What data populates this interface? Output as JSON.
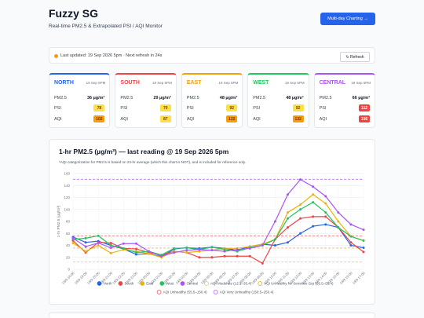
{
  "header": {
    "title": "Fuzzy SG",
    "subtitle": "Real-time PM2.5 & Extrapolated PSI / AQI Monitor",
    "button": "Multi-day Charting →"
  },
  "status": {
    "text": "Last updated: 19 Sep 2026 5pm · Next refresh in 24s",
    "button": "↻ Refresh"
  },
  "regions": [
    {
      "name": "NORTH",
      "time": "19 Sep 5PM",
      "color": "#2563eb",
      "pm25_label": "PM2.5",
      "pm25": "36 µg/m³",
      "psi_label": "PSI",
      "psi": {
        "value": 78,
        "color": "#fde047",
        "text_color": "#713f12"
      },
      "aqi_label": "AQI",
      "aqi": {
        "value": 102,
        "color": "#f59e0b",
        "text_color": "#7c2d12"
      }
    },
    {
      "name": "SOUTH",
      "time": "19 Sep 5PM",
      "color": "#ef4444",
      "pm25_label": "PM2.5",
      "pm25": "29 µg/m³",
      "psi_label": "PSI",
      "psi": {
        "value": 70,
        "color": "#fde047",
        "text_color": "#713f12"
      },
      "aqi_label": "AQI",
      "aqi": {
        "value": 87,
        "color": "#fde047",
        "text_color": "#713f12"
      }
    },
    {
      "name": "EAST",
      "time": "19 Sep 5PM",
      "color": "#f59e0b",
      "pm25_label": "PM2.5",
      "pm25": "48 µg/m³",
      "psi_label": "PSI",
      "psi": {
        "value": 92,
        "color": "#fde047",
        "text_color": "#713f12"
      },
      "aqi_label": "AQI",
      "aqi": {
        "value": 132,
        "color": "#f59e0b",
        "text_color": "#7c2d12"
      }
    },
    {
      "name": "WEST",
      "time": "19 Sep 5PM",
      "color": "#22c55e",
      "pm25_label": "PM2.5",
      "pm25": "48 µg/m³",
      "psi_label": "PSI",
      "psi": {
        "value": 92,
        "color": "#fde047",
        "text_color": "#713f12"
      },
      "aqi_label": "AQI",
      "aqi": {
        "value": 132,
        "color": "#f59e0b",
        "text_color": "#7c2d12"
      }
    },
    {
      "name": "CENTRAL",
      "time": "19 Sep 5PM",
      "color": "#a855f7",
      "pm25_label": "PM2.5",
      "pm25": "66 µg/m³",
      "psi_label": "PSI",
      "psi": {
        "value": 112,
        "color": "#ef4444",
        "text_color": "#ffffff"
      },
      "aqi_label": "AQI",
      "aqi": {
        "value": 156,
        "color": "#ef4444",
        "text_color": "#ffffff"
      }
    }
  ],
  "chart_data": {
    "type": "line",
    "title": "1-hr PM2.5 (µg/m³) — last reading @ 19 Sep 2026 5pm",
    "subtitle": "*AQI categorization for PM2.5 is based on 24-hr average (which this chart is NOT), and is included for reference only.",
    "y_label": "1-hr PM2.5 (µg/m³)",
    "categories": [
      "18/9 18:00",
      "18/9 19:00",
      "18/9 20:00",
      "18/9 21:00",
      "18/9 22:00",
      "18/9 23:00",
      "19/9 00:00",
      "19/9 01:00",
      "19/9 02:00",
      "19/9 03:00",
      "19/9 04:00",
      "19/9 05:00",
      "19/9 06:00",
      "19/9 07:00",
      "19/9 08:00",
      "19/9 09:00",
      "19/9 10:00",
      "19/9 11:00",
      "19/9 12:00",
      "19/9 13:00",
      "19/9 14:00",
      "19/9 15:00",
      "19/9 16:00",
      "19/9 17:00"
    ],
    "series": [
      {
        "name": "North",
        "color": "#2563eb",
        "values": [
          54,
          45,
          47,
          40,
          34,
          25,
          26,
          21,
          34,
          36,
          35,
          37,
          35,
          32,
          38,
          42,
          40,
          45,
          60,
          72,
          75,
          70,
          40,
          36
        ]
      },
      {
        "name": "South",
        "color": "#ef4444",
        "values": [
          48,
          28,
          45,
          44,
          35,
          34,
          28,
          24,
          30,
          28,
          20,
          20,
          22,
          22,
          22,
          10,
          50,
          70,
          85,
          88,
          88,
          70,
          45,
          29
        ]
      },
      {
        "name": "East",
        "color": "#eab308",
        "values": [
          44,
          30,
          40,
          27,
          33,
          30,
          26,
          20,
          30,
          28,
          30,
          32,
          35,
          35,
          38,
          42,
          50,
          95,
          108,
          125,
          110,
          80,
          55,
          48
        ]
      },
      {
        "name": "West",
        "color": "#22c55e",
        "values": [
          50,
          52,
          56,
          40,
          35,
          28,
          30,
          24,
          35,
          36,
          33,
          37,
          33,
          30,
          36,
          40,
          50,
          85,
          100,
          112,
          95,
          70,
          55,
          48
        ]
      },
      {
        "name": "Central",
        "color": "#a855f7",
        "values": [
          52,
          38,
          44,
          36,
          43,
          43,
          30,
          22,
          28,
          32,
          33,
          32,
          30,
          33,
          35,
          40,
          80,
          125,
          150,
          138,
          122,
          95,
          75,
          66
        ]
      }
    ],
    "thresholds": [
      {
        "name": "AQI Moderate (12.1–35.4)",
        "color": "#c9c98f",
        "value": 12.1
      },
      {
        "name": "AQI Unhealthy for Sensitive Grp (35.5–55.4)",
        "color": "#f59e0b",
        "value": 35.5
      },
      {
        "name": "AQI Unhealthy (55.5–150.4)",
        "color": "#ef4444",
        "value": 55.5
      },
      {
        "name": "AQI Very Unhealthy (150.5–250.4)",
        "color": "#a855f7",
        "value": 150.5
      }
    ],
    "ylim": [
      0,
      160
    ],
    "yticks": [
      0,
      20,
      40,
      60,
      80,
      100,
      120,
      140,
      160
    ],
    "grid": true
  }
}
